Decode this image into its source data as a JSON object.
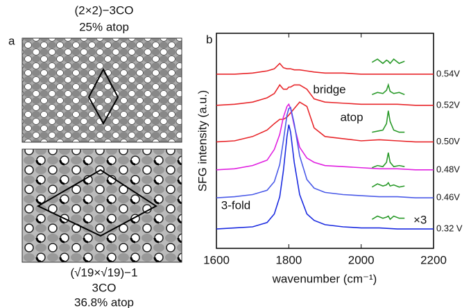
{
  "panel_a": {
    "label": "a",
    "top": {
      "title": "(2×2)−3CO",
      "subtitle": "25% atop"
    },
    "bottom": {
      "title": "(√19×√19)−1",
      "subtitle": "3CO",
      "note": "36.8% atop"
    }
  },
  "chart_data": {
    "type": "line",
    "panel_label": "b",
    "x_label": "wavenumber (cm⁻¹)",
    "y_label": "SFG intensity (a.u.)",
    "xlim": [
      1600,
      2200
    ],
    "xticks": [
      1600,
      1800,
      2000,
      2200
    ],
    "ylim": [
      0,
      10
    ],
    "x": [
      1600,
      1650,
      1700,
      1740,
      1760,
      1775,
      1785,
      1795,
      1800,
      1805,
      1815,
      1830,
      1850,
      1870,
      1900,
      1950,
      2000,
      2050,
      2100,
      2150,
      2200
    ],
    "inset_x": [
      2030,
      2045,
      2060,
      2070,
      2075,
      2080,
      2090,
      2105,
      2120
    ],
    "inset_color": "#2a9a2a",
    "series": [
      {
        "name": "0.54V",
        "color": "#e8262a",
        "values": [
          8.1,
          8.1,
          8.15,
          8.25,
          8.35,
          8.6,
          8.4,
          8.35,
          8.35,
          8.35,
          8.3,
          8.3,
          8.25,
          8.2,
          8.15,
          8.15,
          8.1,
          8.1,
          8.1,
          8.1,
          8.1
        ],
        "inset_values": [
          8.65,
          8.8,
          8.6,
          8.75,
          8.7,
          8.6,
          8.8,
          8.6,
          8.7
        ]
      },
      {
        "name": "0.52V",
        "color": "#e8262a",
        "values": [
          6.65,
          6.7,
          6.8,
          7.0,
          7.2,
          7.6,
          7.4,
          7.4,
          7.5,
          7.5,
          7.6,
          7.6,
          7.4,
          6.95,
          6.8,
          6.75,
          6.7,
          6.7,
          6.7,
          6.65,
          6.65
        ],
        "inset_values": [
          7.15,
          7.25,
          7.2,
          7.35,
          7.6,
          7.3,
          7.2,
          7.25,
          7.15
        ]
      },
      {
        "name": "0.50V",
        "color": "#e8262a",
        "values": [
          4.95,
          5.0,
          5.2,
          5.5,
          5.8,
          6.0,
          6.0,
          6.1,
          6.2,
          6.3,
          6.5,
          6.8,
          6.6,
          5.6,
          5.2,
          5.1,
          5.0,
          5.05,
          5.0,
          4.95,
          4.95
        ],
        "inset_values": [
          5.4,
          5.45,
          5.5,
          5.8,
          6.4,
          5.9,
          5.5,
          5.4,
          5.4
        ]
      },
      {
        "name": "0.48V",
        "color": "#e020e0",
        "values": [
          3.65,
          3.7,
          3.85,
          4.1,
          4.6,
          5.3,
          6.1,
          6.6,
          6.7,
          6.5,
          5.7,
          4.7,
          4.2,
          4.0,
          3.85,
          3.8,
          3.75,
          3.7,
          3.7,
          3.65,
          3.65
        ],
        "inset_values": [
          3.75,
          3.85,
          3.8,
          4.0,
          4.45,
          4.0,
          3.8,
          3.85,
          3.8
        ]
      },
      {
        "name": "0.46V",
        "color": "#4a5ae8",
        "values": [
          2.35,
          2.4,
          2.5,
          2.7,
          3.1,
          3.9,
          5.0,
          6.2,
          6.5,
          6.55,
          5.8,
          4.3,
          3.2,
          2.8,
          2.6,
          2.5,
          2.45,
          2.4,
          2.4,
          2.35,
          2.35
        ],
        "inset_values": [
          2.85,
          3.0,
          2.9,
          2.95,
          3.05,
          2.9,
          2.95,
          2.85,
          2.9
        ]
      },
      {
        "name": "0.32 V",
        "color": "#1a2ae0",
        "values": [
          0.9,
          0.95,
          1.0,
          1.2,
          1.6,
          2.4,
          3.6,
          5.2,
          5.75,
          5.4,
          4.0,
          2.5,
          1.6,
          1.3,
          1.1,
          1.0,
          0.95,
          0.95,
          0.9,
          0.9,
          0.9
        ],
        "inset_values": [
          1.35,
          1.5,
          1.4,
          1.45,
          1.5,
          1.35,
          1.5,
          1.4,
          1.4
        ]
      }
    ],
    "annotations": [
      "bridge",
      "atop",
      "3-fold",
      "×3"
    ]
  }
}
